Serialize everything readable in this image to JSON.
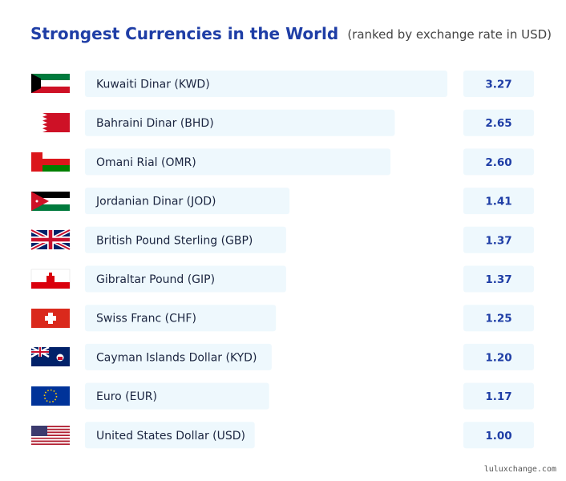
{
  "chart_data": {
    "type": "bar",
    "orientation": "horizontal",
    "title": "Strongest Currencies in the World",
    "subtitle": "(ranked by exchange rate in USD)",
    "categories": [
      "Kuwaiti Dinar (KWD)",
      "Bahraini Dinar (BHD)",
      "Omani Rial (OMR)",
      "Jordanian Dinar (JOD)",
      "British Pound Sterling (GBP)",
      "Gibraltar Pound (GIP)",
      "Swiss Franc (CHF)",
      "Cayman Islands Dollar (KYD)",
      "Euro (EUR)",
      "United States Dollar (USD)"
    ],
    "values": [
      3.27,
      2.65,
      2.6,
      1.41,
      1.37,
      1.37,
      1.25,
      1.2,
      1.17,
      1.0
    ],
    "value_labels": [
      "3.27",
      "2.65",
      "2.60",
      "1.41",
      "1.37",
      "1.37",
      "1.25",
      "1.20",
      "1.17",
      "1.00"
    ],
    "color": "#eef8fd",
    "xlim": [
      -1,
      3.27
    ],
    "watermark": "luluxchange.com"
  }
}
